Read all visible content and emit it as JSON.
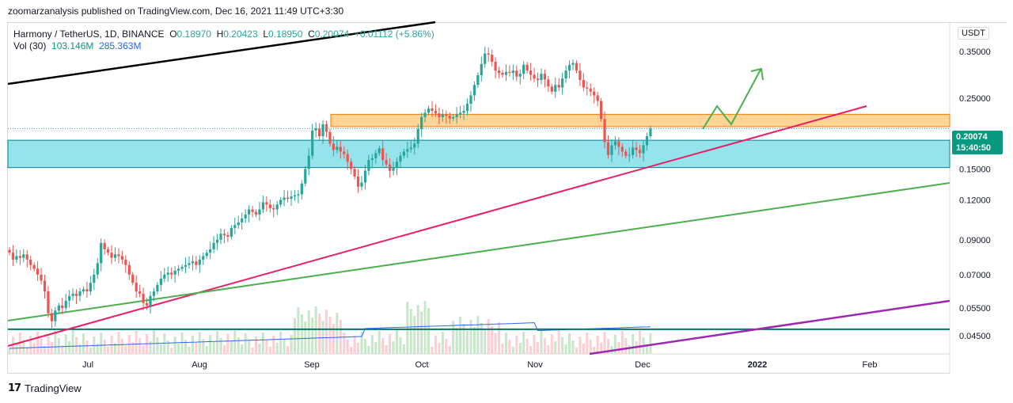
{
  "publisher_line": "zoomarzanalysis published on TradingView.com, Dec 16, 2021 11:49 UTC+3:30",
  "legend": {
    "symbol": "Harmony / TetherUS, 1D, BINANCE",
    "o_label": "O",
    "o_value": "0.18970",
    "h_label": "H",
    "h_value": "0.20423",
    "l_label": "L",
    "l_value": "0.18950",
    "c_label": "C",
    "c_value": "0.20074",
    "change": "+0.01112 (+5.86%)",
    "vol_label": "Vol (30)",
    "vol_value": "103.146M",
    "vol_ma": "285.363M"
  },
  "price_tag": {
    "price": "0.20074",
    "countdown": "15:40:50"
  },
  "unit_badge": "USDT",
  "footer": {
    "brand": "TradingView"
  },
  "colors": {
    "up": "#26a69a",
    "down": "#ef5350",
    "resistance_zone": "#ffb74d",
    "support_zone": "#4dd0e1",
    "trend_red": "#e91e63",
    "trend_green": "#4caf50",
    "trend_purple": "#9c27b0",
    "trend_black": "#000000",
    "vol_ma": "#2962ff"
  },
  "chart_data": {
    "type": "candlestick",
    "scale": "log",
    "y_ticks": [
      "0.35000",
      "0.25000",
      "0.15000",
      "0.12000",
      "0.09000",
      "0.07000",
      "0.05500",
      "0.04500"
    ],
    "x_ticks": [
      "Jul",
      "Aug",
      "Sep",
      "Oct",
      "Nov",
      "Dec",
      "2022",
      "Feb"
    ],
    "ylim": [
      0.0395,
      0.43
    ],
    "zones": [
      {
        "name": "resistance",
        "low": 0.2035,
        "high": 0.2225
      },
      {
        "name": "support",
        "low": 0.1515,
        "high": 0.1845
      }
    ],
    "horizontal_line": 0.0472,
    "closes": [
      0.082,
      0.078,
      0.08,
      0.079,
      0.081,
      0.078,
      0.075,
      0.073,
      0.07,
      0.067,
      0.062,
      0.053,
      0.05,
      0.054,
      0.056,
      0.055,
      0.058,
      0.06,
      0.061,
      0.06,
      0.062,
      0.063,
      0.062,
      0.066,
      0.07,
      0.076,
      0.088,
      0.084,
      0.082,
      0.079,
      0.081,
      0.08,
      0.078,
      0.075,
      0.07,
      0.066,
      0.062,
      0.061,
      0.057,
      0.056,
      0.06,
      0.062,
      0.065,
      0.068,
      0.07,
      0.071,
      0.07,
      0.072,
      0.073,
      0.074,
      0.075,
      0.076,
      0.077,
      0.075,
      0.078,
      0.08,
      0.082,
      0.084,
      0.088,
      0.09,
      0.094,
      0.093,
      0.092,
      0.098,
      0.1,
      0.102,
      0.105,
      0.108,
      0.112,
      0.11,
      0.108,
      0.112,
      0.118,
      0.116,
      0.113,
      0.112,
      0.116,
      0.12,
      0.122,
      0.121,
      0.123,
      0.124,
      0.125,
      0.135,
      0.15,
      0.165,
      0.198,
      0.201,
      0.19,
      0.207,
      0.196,
      0.18,
      0.172,
      0.176,
      0.17,
      0.167,
      0.158,
      0.15,
      0.142,
      0.132,
      0.136,
      0.148,
      0.16,
      0.162,
      0.168,
      0.174,
      0.16,
      0.155,
      0.148,
      0.152,
      0.158,
      0.165,
      0.17,
      0.173,
      0.175,
      0.18,
      0.2,
      0.218,
      0.225,
      0.232,
      0.228,
      0.224,
      0.218,
      0.222,
      0.22,
      0.216,
      0.218,
      0.222,
      0.225,
      0.228,
      0.24,
      0.255,
      0.275,
      0.295,
      0.32,
      0.345,
      0.342,
      0.325,
      0.305,
      0.3,
      0.296,
      0.302,
      0.3,
      0.305,
      0.292,
      0.298,
      0.318,
      0.305,
      0.296,
      0.288,
      0.285,
      0.298,
      0.286,
      0.272,
      0.262,
      0.275,
      0.27,
      0.288,
      0.305,
      0.318,
      0.322,
      0.305,
      0.285,
      0.27,
      0.268,
      0.262,
      0.255,
      0.245,
      0.215,
      0.182,
      0.166,
      0.178,
      0.183,
      0.176,
      0.17,
      0.165,
      0.166,
      0.175,
      0.172,
      0.168,
      0.178,
      0.19,
      0.20074
    ]
  }
}
